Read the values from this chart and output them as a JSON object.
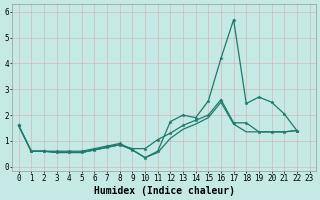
{
  "xlabel": "Humidex (Indice chaleur)",
  "background_color": "#c5eae5",
  "grid_color": "#dff0ee",
  "line_color": "#1e7a6a",
  "xlim": [
    -0.5,
    23.5
  ],
  "ylim": [
    -0.15,
    6.3
  ],
  "xtick_vals": [
    0,
    1,
    2,
    3,
    4,
    5,
    6,
    7,
    8,
    9,
    10,
    11,
    12,
    13,
    14,
    15,
    16,
    17,
    18,
    19,
    20,
    21,
    22,
    23
  ],
  "ytick_vals": [
    0,
    1,
    2,
    3,
    4,
    5,
    6
  ],
  "series1_x": [
    0,
    1,
    2,
    3,
    4,
    5,
    6,
    7,
    8,
    9,
    10,
    11,
    12,
    13,
    14,
    15,
    16,
    17,
    18,
    19,
    20,
    21,
    22
  ],
  "series1_y": [
    1.6,
    0.6,
    0.6,
    0.6,
    0.6,
    0.6,
    0.7,
    0.8,
    0.9,
    0.65,
    0.35,
    0.6,
    1.75,
    2.0,
    1.9,
    2.55,
    4.2,
    5.7,
    2.45,
    2.7,
    2.5,
    2.05,
    1.4
  ],
  "series2_x": [
    0,
    1,
    2,
    3,
    4,
    5,
    6,
    7,
    8,
    9,
    10,
    11,
    12,
    13,
    14,
    15,
    16,
    17,
    18,
    19,
    20,
    21,
    22
  ],
  "series2_y": [
    1.6,
    0.6,
    0.6,
    0.55,
    0.55,
    0.55,
    0.65,
    0.75,
    0.85,
    0.7,
    0.7,
    1.05,
    1.3,
    1.6,
    1.8,
    2.0,
    2.6,
    1.7,
    1.7,
    1.35,
    1.35,
    1.35,
    1.4
  ],
  "series3_x": [
    0,
    1,
    2,
    3,
    4,
    5,
    6,
    7,
    8,
    9,
    10,
    11,
    12,
    13,
    14,
    15,
    16,
    17,
    18,
    19,
    20,
    21,
    22
  ],
  "series3_y": [
    1.6,
    0.6,
    0.6,
    0.55,
    0.55,
    0.55,
    0.65,
    0.75,
    0.85,
    0.65,
    0.35,
    0.55,
    1.1,
    1.45,
    1.65,
    1.9,
    2.5,
    1.65,
    1.35,
    1.35,
    1.35,
    1.35,
    1.4
  ],
  "xlabel_fontsize": 7,
  "tick_fontsize": 5.5,
  "lw": 0.9,
  "marker_size": 2.5
}
